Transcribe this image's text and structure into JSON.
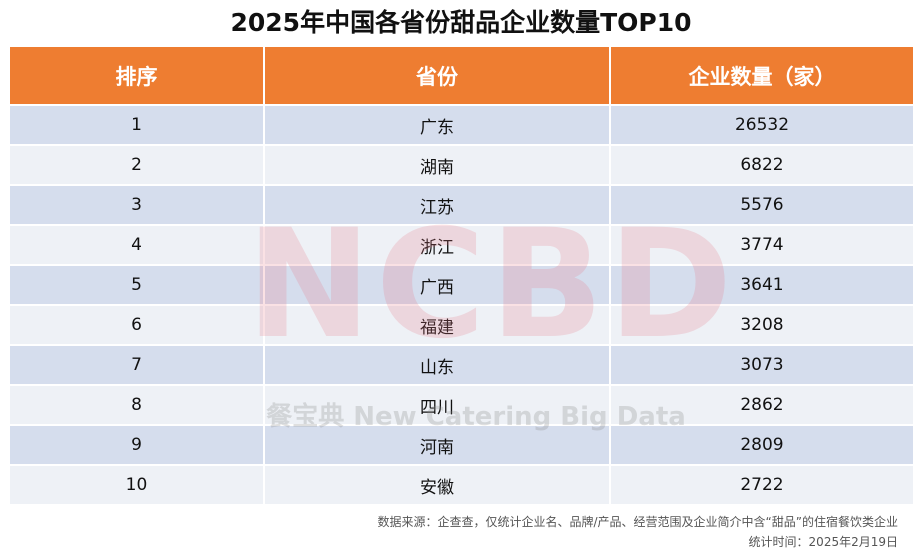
{
  "title": "2025年中国各省份甜品企业数量TOP10",
  "table": {
    "headers": [
      "排序",
      "省份",
      "企业数量（家）"
    ],
    "rows": [
      {
        "rank": "1",
        "province": "广东",
        "count": "26532"
      },
      {
        "rank": "2",
        "province": "湖南",
        "count": "6822"
      },
      {
        "rank": "3",
        "province": "江苏",
        "count": "5576"
      },
      {
        "rank": "4",
        "province": "浙江",
        "count": "3774"
      },
      {
        "rank": "5",
        "province": "广西",
        "count": "3641"
      },
      {
        "rank": "6",
        "province": "福建",
        "count": "3208"
      },
      {
        "rank": "7",
        "province": "山东",
        "count": "3073"
      },
      {
        "rank": "8",
        "province": "四川",
        "count": "2862"
      },
      {
        "rank": "9",
        "province": "河南",
        "count": "2809"
      },
      {
        "rank": "10",
        "province": "安徽",
        "count": "2722"
      }
    ]
  },
  "watermark": {
    "logo_text": "NCBD",
    "subtitle": "餐宝典 New Catering Big Data"
  },
  "footer": {
    "source": "数据来源：企查查，仅统计企业名、品牌/产品、经营范围及企业简介中含“甜品”的住宿餐饮类企业",
    "date": "统计时间：2025年2月19日"
  },
  "colors": {
    "header_bg": "#ee7d31",
    "row_odd": "#d5dded",
    "row_even": "#eef1f6"
  },
  "chart_data": {
    "type": "table",
    "title": "2025年中国各省份甜品企业数量TOP10",
    "columns": [
      "排序",
      "省份",
      "企业数量（家）"
    ],
    "categories": [
      "广东",
      "湖南",
      "江苏",
      "浙江",
      "广西",
      "福建",
      "山东",
      "四川",
      "河南",
      "安徽"
    ],
    "values": [
      26532,
      6822,
      5576,
      3774,
      3641,
      3208,
      3073,
      2862,
      2809,
      2722
    ]
  }
}
